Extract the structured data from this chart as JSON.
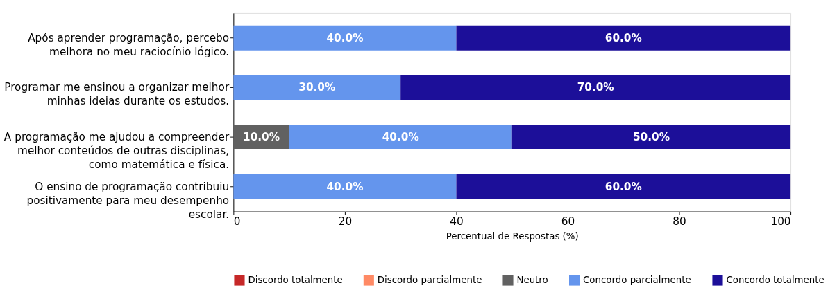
{
  "chart_data": {
    "type": "bar",
    "orientation": "horizontal",
    "stacked": true,
    "categories": [
      "Após aprender programação, percebo\nmelhora no meu raciocínio lógico.",
      "Programar me ensinou a organizar melhor\nminhas ideias durante os estudos.",
      "A programação me ajudou a compreender\nmelhor conteúdos de outras disciplinas,\ncomo matemática e física.",
      "O ensino de programação contribuiu\npositivamente para meu desempenho\nescolar."
    ],
    "series": [
      {
        "name": "Discordo totalmente",
        "color": "#c62828",
        "values": [
          0,
          0,
          0,
          0
        ],
        "value_labels": [
          null,
          null,
          null,
          null
        ]
      },
      {
        "name": "Discordo parcialmente",
        "color": "#ff8a65",
        "values": [
          0,
          0,
          0,
          0
        ],
        "value_labels": [
          null,
          null,
          null,
          null
        ]
      },
      {
        "name": "Neutro",
        "color": "#616161",
        "values": [
          0,
          0,
          10,
          0
        ],
        "value_labels": [
          null,
          null,
          "10.0%",
          null
        ]
      },
      {
        "name": "Concordo parcialmente",
        "color": "#6495ed",
        "values": [
          40,
          30,
          40,
          40
        ],
        "value_labels": [
          "40.0%",
          "30.0%",
          "40.0%",
          "40.0%"
        ]
      },
      {
        "name": "Concordo totalmente",
        "color": "#1c0f99",
        "values": [
          60,
          70,
          50,
          60
        ],
        "value_labels": [
          "60.0%",
          "70.0%",
          "50.0%",
          "60.0%"
        ]
      }
    ],
    "xlim": [
      0,
      100
    ],
    "xticks": [
      0,
      20,
      40,
      60,
      80,
      100
    ],
    "xlabel": "Percentual de Respostas (%)",
    "legend": "bottom",
    "grid": false
  }
}
